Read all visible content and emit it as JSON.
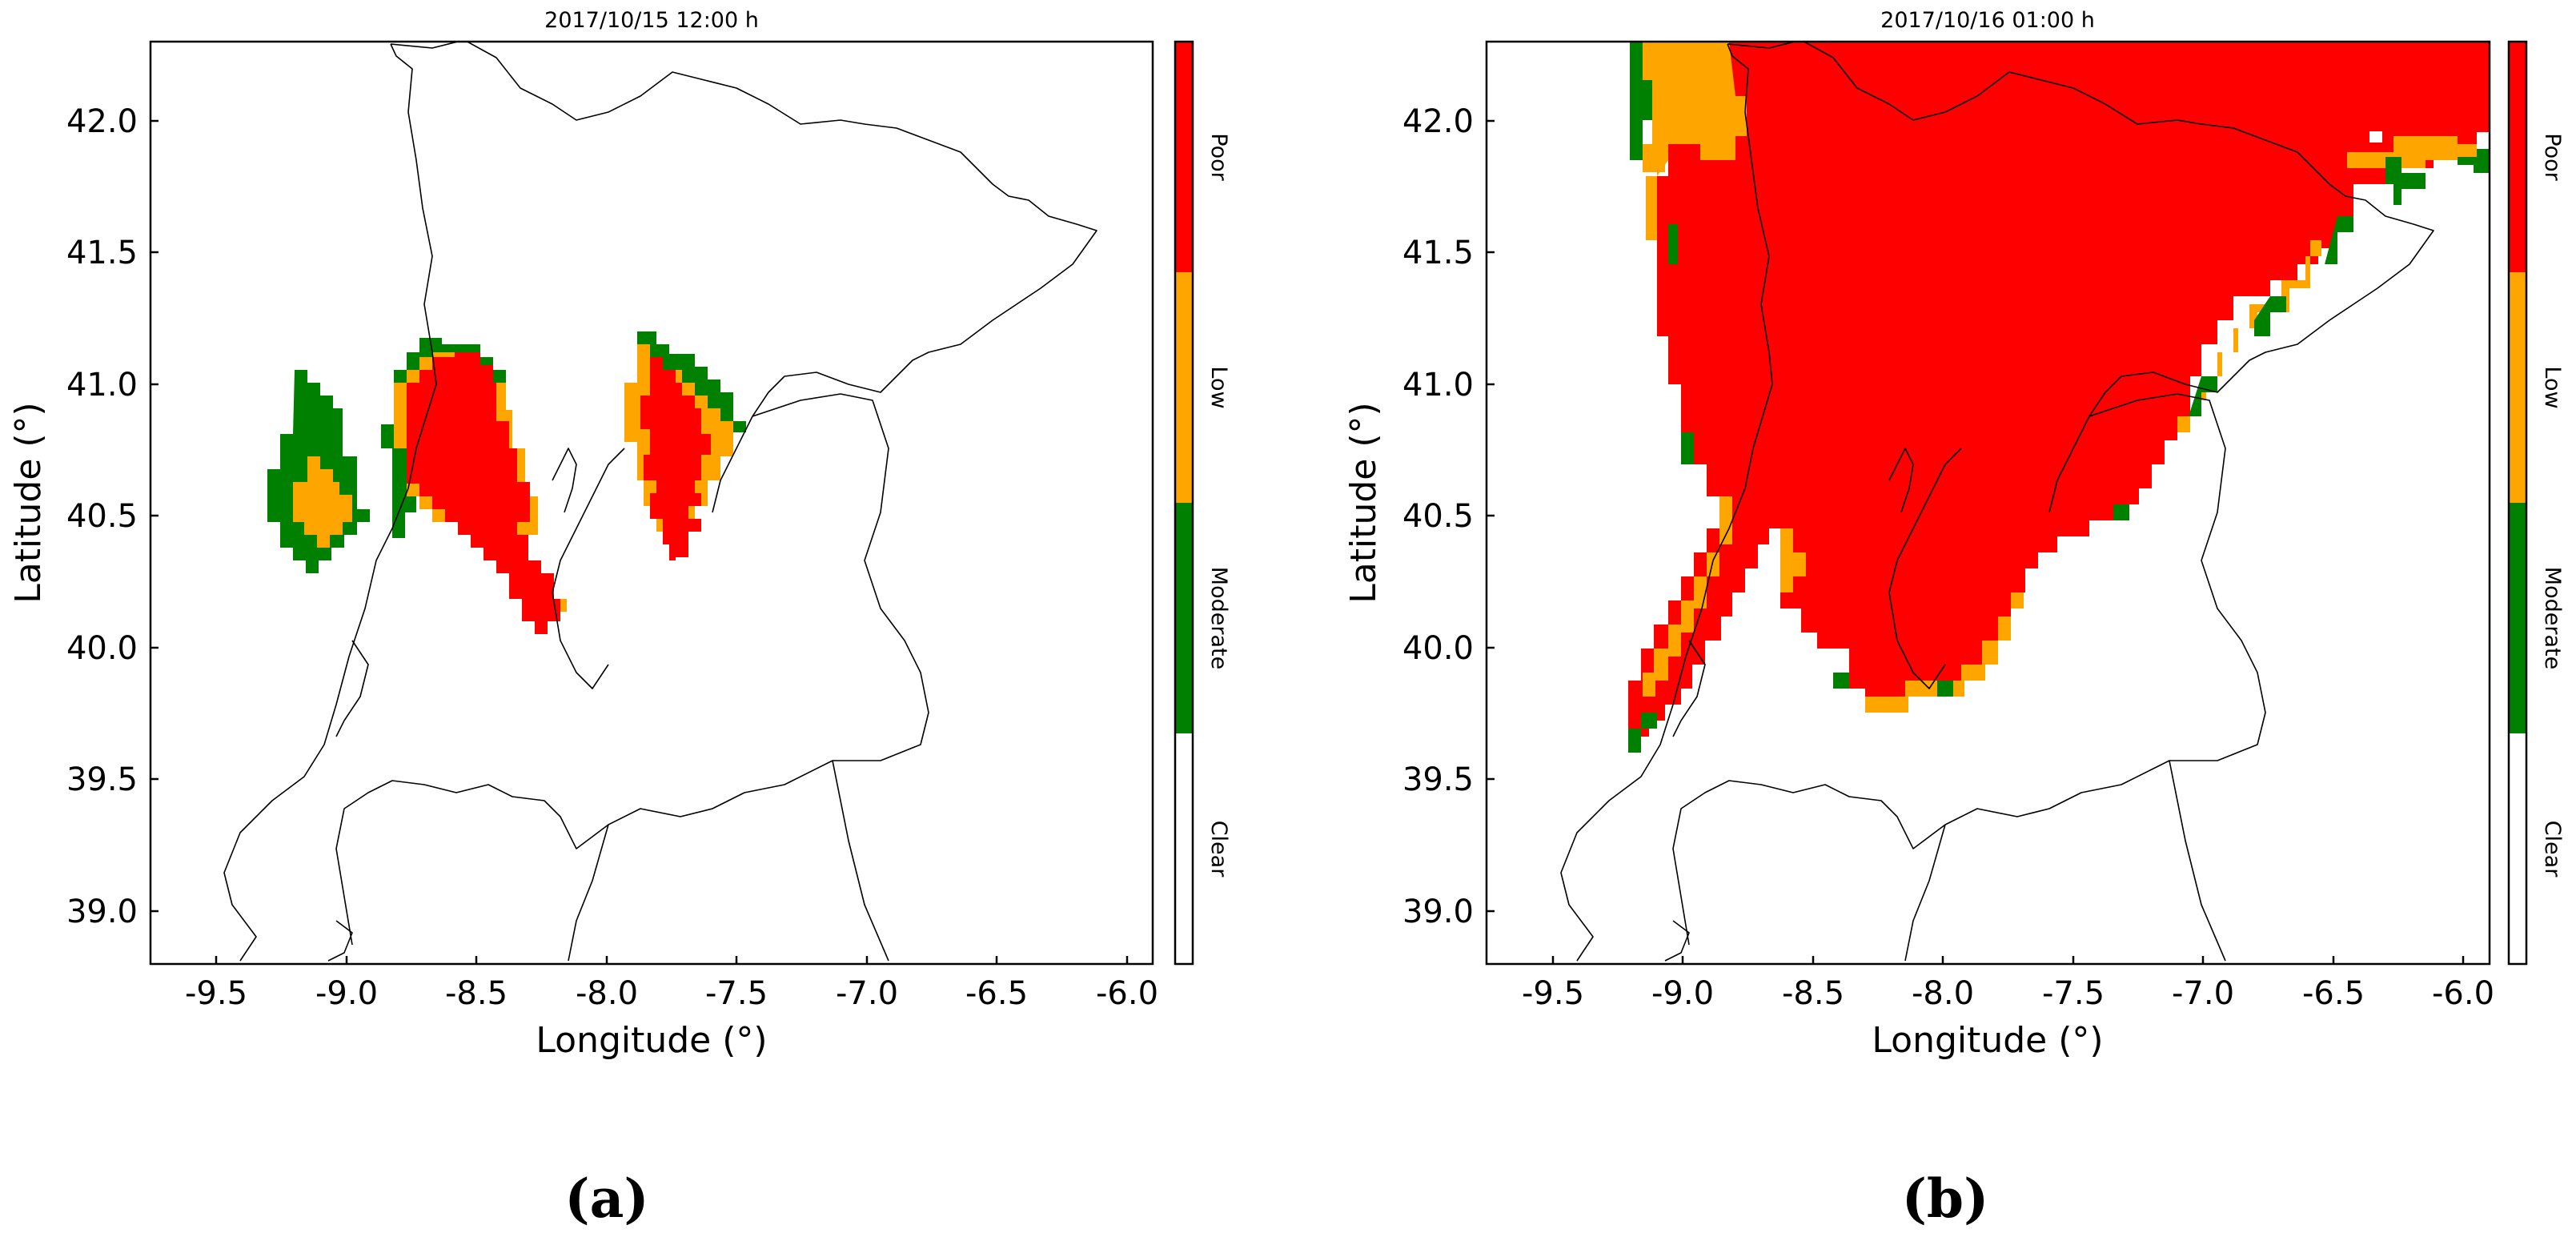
{
  "figure": {
    "panels": [
      {
        "title": "2017/10/15 12:00 h",
        "caption": "(a)",
        "xlabel": "Longitude (°)",
        "ylabel": "Latitude (°)",
        "xlim": [
          -9.8,
          -5.95
        ],
        "ylim": [
          38.8,
          42.3
        ],
        "xticks": [
          "-9.5",
          "-9.0",
          "-8.5",
          "-8.0",
          "-7.5",
          "-7.0",
          "-6.5",
          "-6.0"
        ],
        "yticks": [
          "39.0",
          "39.5",
          "40.0",
          "40.5",
          "41.0",
          "41.5",
          "42.0"
        ],
        "clusters": [
          {
            "class": "Moderate",
            "bounds": [
              -9.35,
              -9.0,
              40.3,
              41.05
            ]
          },
          {
            "class": "Low",
            "bounds": [
              -9.25,
              -9.07,
              40.4,
              40.72
            ]
          },
          {
            "class": "Moderate",
            "bounds": [
              -8.9,
              -8.55,
              40.5,
              41.17
            ]
          },
          {
            "class": "Low",
            "bounds": [
              -8.86,
              -8.38,
              40.35,
              41.12
            ]
          },
          {
            "class": "Poor",
            "bounds": [
              -8.75,
              -8.3,
              40.15,
              41.1
            ]
          },
          {
            "class": "Moderate",
            "bounds": [
              -7.95,
              -7.55,
              40.8,
              41.18
            ]
          },
          {
            "class": "Low",
            "bounds": [
              -7.93,
              -7.58,
              40.48,
              41.1
            ]
          },
          {
            "class": "Poor",
            "bounds": [
              -7.9,
              -7.68,
              40.32,
              41.05
            ]
          }
        ]
      },
      {
        "title": "2017/10/16 01:00 h",
        "caption": "(b)",
        "xlabel": "Longitude (°)",
        "ylabel": "Latitude (°)",
        "xlim": [
          -9.8,
          -5.95
        ],
        "ylim": [
          38.8,
          42.3
        ],
        "xticks": [
          "-9.5",
          "-9.0",
          "-8.5",
          "-8.0",
          "-7.5",
          "-7.0",
          "-6.5",
          "-6.0"
        ],
        "yticks": [
          "39.0",
          "39.5",
          "40.0",
          "40.5",
          "41.0",
          "41.5",
          "42.0"
        ],
        "clusters": [
          {
            "class": "Moderate",
            "bounds": [
              -9.25,
              -8.85,
              41.9,
              42.3
            ]
          },
          {
            "class": "Low",
            "bounds": [
              -9.2,
              -8.75,
              41.8,
              42.3
            ]
          },
          {
            "class": "Poor",
            "bounds": [
              -9.25,
              -6.0,
              39.6,
              42.3
            ]
          },
          {
            "class": "Low",
            "bounds": [
              -6.65,
              -6.05,
              41.7,
              41.95
            ]
          },
          {
            "class": "Moderate",
            "bounds": [
              -6.65,
              -6.05,
              41.7,
              41.92
            ]
          }
        ]
      }
    ],
    "colorbar": {
      "classes": [
        {
          "label": "Poor",
          "color": "#ff0000"
        },
        {
          "label": "Low",
          "color": "#ffa500"
        },
        {
          "label": "Moderate",
          "color": "#008000"
        },
        {
          "label": "Clear",
          "color": "#ffffff"
        }
      ]
    }
  }
}
